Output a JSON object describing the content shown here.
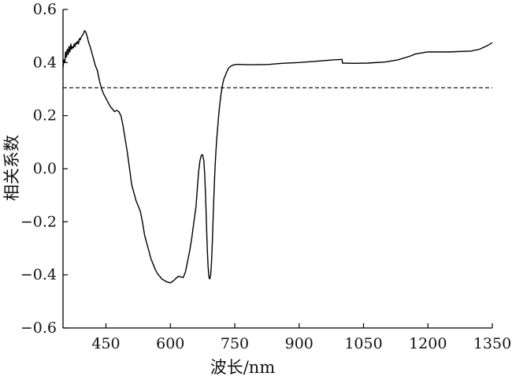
{
  "chart_data": {
    "type": "line",
    "title": "",
    "xlabel": "波长/nm",
    "ylabel": "相关系数",
    "xlim": [
      350,
      1350
    ],
    "ylim": [
      -0.6,
      0.6
    ],
    "x_ticks": [
      450,
      600,
      750,
      900,
      1050,
      1200,
      1350
    ],
    "y_ticks": [
      0.6,
      0.4,
      0.2,
      0.0,
      -0.2,
      -0.4,
      -0.6
    ],
    "x_tick_labels": [
      "450",
      "600",
      "750",
      "900",
      "1050",
      "1200",
      "1350"
    ],
    "y_tick_labels": [
      "0.6",
      "0.4",
      "0.2",
      "0.0",
      "−0.2",
      "−0.4",
      "−0.6"
    ],
    "grid": false,
    "reference_line": {
      "y": 0.305,
      "style": "dashed"
    },
    "series": [
      {
        "x": [
          350,
          352,
          354,
          356,
          358,
          360,
          362,
          364,
          366,
          368,
          370,
          372,
          374,
          376,
          378,
          380,
          382,
          384,
          386,
          388,
          390,
          392,
          394,
          396,
          398,
          400,
          403,
          406,
          409,
          412,
          415,
          420,
          425,
          430,
          435,
          440,
          445,
          450,
          455,
          460,
          465,
          470,
          475,
          480,
          485,
          490,
          495,
          500,
          505,
          510,
          515,
          520,
          525,
          530,
          535,
          540,
          545,
          550,
          555,
          560,
          565,
          570,
          575,
          580,
          585,
          590,
          595,
          600,
          605,
          610,
          615,
          620,
          625,
          630,
          635,
          640,
          645,
          650,
          655,
          660,
          663,
          666,
          669,
          672,
          675,
          678,
          680,
          682,
          684,
          686,
          688,
          690,
          692,
          694,
          696,
          698,
          700,
          702,
          704,
          706,
          708,
          710,
          712,
          715,
          718,
          720,
          722,
          725,
          728,
          730,
          733,
          736,
          740,
          745,
          750,
          755,
          760,
          780,
          800,
          830,
          860,
          900,
          940,
          980,
          1000,
          1001,
          1030,
          1060,
          1100,
          1130,
          1160,
          1170,
          1200,
          1250,
          1300,
          1320,
          1340,
          1350
        ],
        "y": [
          0.38,
          0.41,
          0.4,
          0.44,
          0.42,
          0.45,
          0.43,
          0.46,
          0.44,
          0.47,
          0.45,
          0.46,
          0.455,
          0.47,
          0.46,
          0.475,
          0.47,
          0.48,
          0.47,
          0.49,
          0.485,
          0.495,
          0.5,
          0.505,
          0.51,
          0.52,
          0.515,
          0.5,
          0.48,
          0.465,
          0.45,
          0.42,
          0.39,
          0.37,
          0.33,
          0.3,
          0.28,
          0.265,
          0.25,
          0.235,
          0.225,
          0.215,
          0.22,
          0.215,
          0.2,
          0.16,
          0.11,
          0.06,
          0.0,
          -0.06,
          -0.09,
          -0.12,
          -0.14,
          -0.16,
          -0.2,
          -0.25,
          -0.28,
          -0.31,
          -0.34,
          -0.36,
          -0.38,
          -0.395,
          -0.405,
          -0.415,
          -0.42,
          -0.425,
          -0.428,
          -0.43,
          -0.425,
          -0.418,
          -0.41,
          -0.405,
          -0.408,
          -0.41,
          -0.39,
          -0.35,
          -0.31,
          -0.26,
          -0.2,
          -0.14,
          -0.07,
          -0.01,
          0.03,
          0.05,
          0.053,
          0.03,
          -0.02,
          -0.1,
          -0.2,
          -0.3,
          -0.37,
          -0.41,
          -0.415,
          -0.4,
          -0.35,
          -0.27,
          -0.17,
          -0.08,
          0.0,
          0.06,
          0.11,
          0.15,
          0.19,
          0.24,
          0.28,
          0.3,
          0.32,
          0.34,
          0.35,
          0.36,
          0.37,
          0.38,
          0.385,
          0.39,
          0.392,
          0.393,
          0.393,
          0.392,
          0.392,
          0.393,
          0.397,
          0.4,
          0.405,
          0.41,
          0.412,
          0.398,
          0.397,
          0.398,
          0.402,
          0.41,
          0.425,
          0.432,
          0.44,
          0.44,
          0.443,
          0.45,
          0.465,
          0.475
        ]
      }
    ]
  }
}
